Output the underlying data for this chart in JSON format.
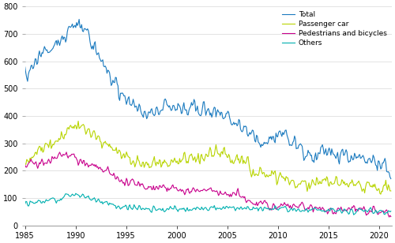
{
  "title": "",
  "ylabel": "",
  "xlabel": "",
  "xlim": [
    1985.0,
    2021.25
  ],
  "ylim": [
    0,
    800
  ],
  "yticks": [
    0,
    100,
    200,
    300,
    400,
    500,
    600,
    700,
    800
  ],
  "xticks": [
    1985,
    1990,
    1995,
    2000,
    2005,
    2010,
    2015,
    2020
  ],
  "colors": {
    "Total": "#1a7abf",
    "Passenger car": "#b8d400",
    "Pedestrians and bicycles": "#c8008c",
    "Others": "#00b0b0"
  },
  "legend_labels": [
    "Total",
    "Passenger car",
    "Pedestrians and bicycles",
    "Others"
  ],
  "background_color": "#ffffff",
  "grid_color": "#d8d8d8"
}
